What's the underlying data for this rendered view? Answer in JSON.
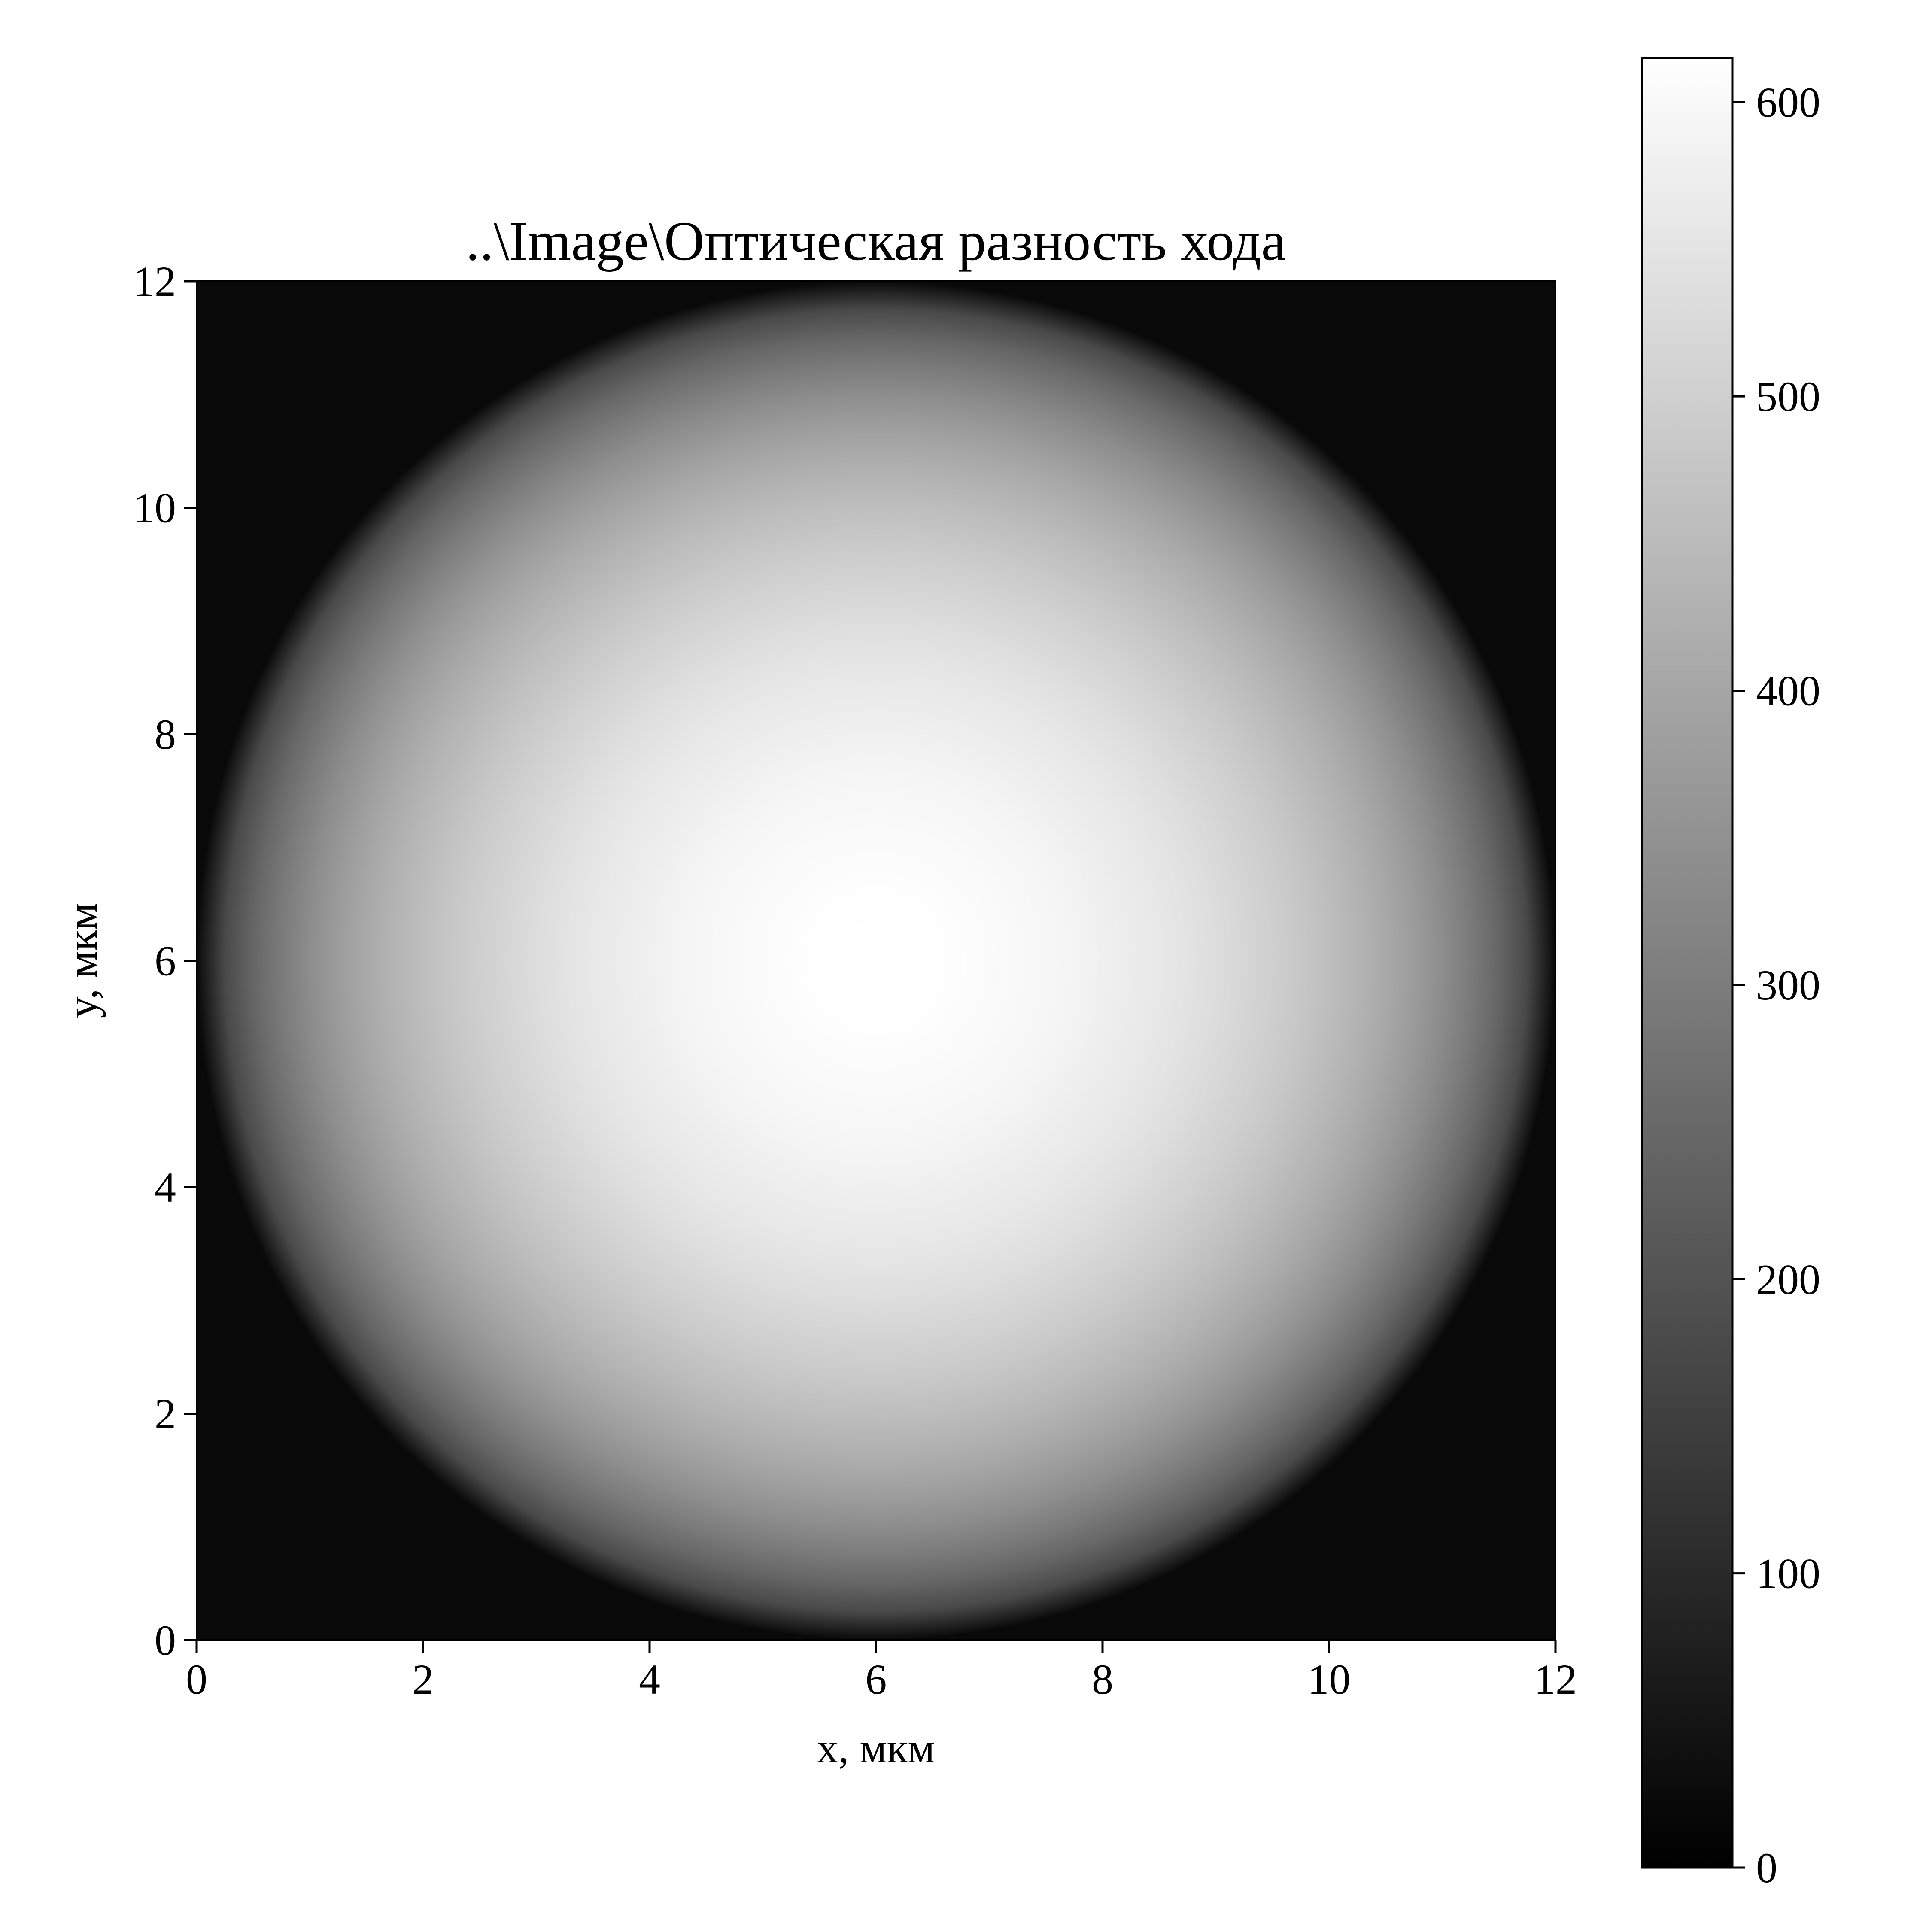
{
  "chart_data": {
    "type": "heatmap",
    "title": "..\\Image\\Оптическая разность хода",
    "xlabel": "x, мкм",
    "ylabel": "y, мкм",
    "xlim": [
      0,
      12
    ],
    "ylim": [
      0,
      12
    ],
    "x_ticks": [
      "0",
      "2",
      "4",
      "6",
      "8",
      "10",
      "12"
    ],
    "y_ticks": [
      "0",
      "2",
      "4",
      "6",
      "8",
      "10",
      "12"
    ],
    "colormap": "gray",
    "colorbar": {
      "min": 0,
      "max": 615,
      "ticks": [
        "0",
        "100",
        "200",
        "300",
        "400",
        "500",
        "600"
      ]
    },
    "field": {
      "shape": "spherical cap",
      "center": [
        6,
        6
      ],
      "radius": 6,
      "peak_value": 615,
      "outside_value": 0
    },
    "colors": {
      "low": "#000000",
      "high": "#ffffff",
      "background": "#ffffff",
      "frame": "#000000"
    }
  }
}
